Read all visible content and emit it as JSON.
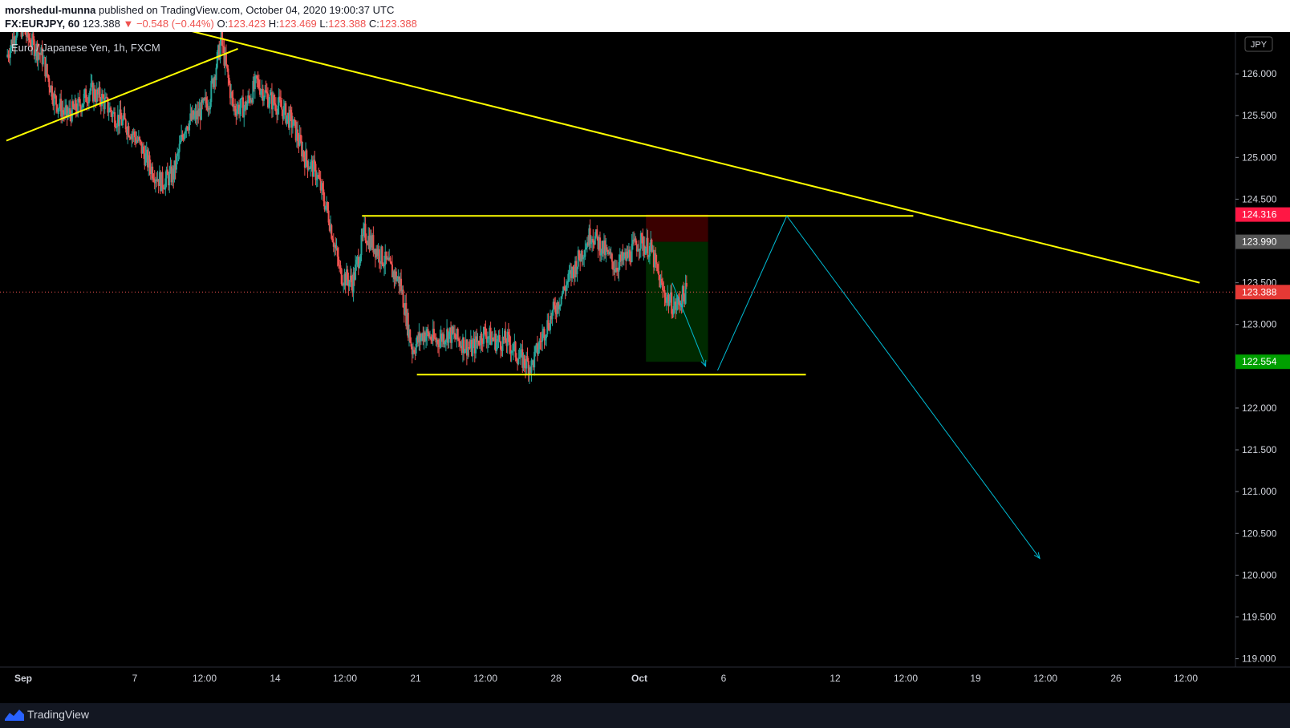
{
  "header": {
    "author": "morshedul-munna",
    "published": "published on TradingView.com, October 04, 2020 19:00:37 UTC",
    "symbol": "FX:EURJPY, 60",
    "last": "123.388",
    "change_arrow": "▼",
    "change": "−0.548 (−0.44%)",
    "o_label": "O:",
    "o_value": "123.423",
    "h_label": "H:",
    "h_value": "123.469",
    "l_label": "L:",
    "l_value": "123.388",
    "c_label": "C:",
    "c_value": "123.388"
  },
  "legend": {
    "title": "Euro / Japanese Yen, 1h, FXCM",
    "currency": "JPY"
  },
  "footer": {
    "brand": "TradingView",
    "logo_icon": "tradingview-logo-icon"
  },
  "colors": {
    "background": "#000000",
    "up_candle": "#26a69a",
    "down_candle": "#ef5350",
    "trendline": "#ffff00",
    "projection": "#00bcd4",
    "stop_zone": "#3a0000",
    "target_zone": "#002a00"
  },
  "chart_data": {
    "type": "candlestick",
    "title": "Euro / Japanese Yen, 1h, FXCM",
    "ylabel": "JPY",
    "ylim": [
      118.9,
      126.5
    ],
    "y_ticks": [
      "126.000",
      "125.500",
      "125.000",
      "124.500",
      "123.500",
      "123.000",
      "122.000",
      "121.500",
      "121.000",
      "120.500",
      "120.000",
      "119.500",
      "119.000"
    ],
    "x_ticks": [
      "Sep",
      "7",
      "12:00",
      "14",
      "12:00",
      "21",
      "12:00",
      "28",
      "Oct",
      "6",
      "12",
      "12:00",
      "19",
      "12:00",
      "26",
      "12:00"
    ],
    "price_labels": [
      {
        "label": "124.316",
        "price": 124.316,
        "color": "#ff1744"
      },
      {
        "label": "123.990",
        "price": 123.99,
        "color": "#555555"
      },
      {
        "label": "123.388",
        "price": 123.388,
        "color": "#e53935"
      },
      {
        "label": "122.554",
        "price": 122.554,
        "color": "#00a000"
      }
    ],
    "current_price": 123.388,
    "price_path": [
      [
        0.0,
        126.2
      ],
      [
        0.5,
        126.6
      ],
      [
        1.0,
        126.4
      ],
      [
        1.5,
        126.2
      ],
      [
        2.0,
        125.7
      ],
      [
        2.5,
        125.5
      ],
      [
        3.0,
        125.6
      ],
      [
        3.5,
        125.8
      ],
      [
        4.0,
        125.7
      ],
      [
        4.5,
        125.5
      ],
      [
        5.0,
        125.4
      ],
      [
        5.5,
        125.2
      ],
      [
        6.0,
        124.9
      ],
      [
        6.5,
        124.7
      ],
      [
        7.0,
        124.8
      ],
      [
        7.5,
        125.4
      ],
      [
        8.0,
        125.5
      ],
      [
        8.5,
        125.7
      ],
      [
        9.0,
        126.4
      ],
      [
        9.5,
        125.6
      ],
      [
        10.0,
        125.6
      ],
      [
        10.5,
        125.9
      ],
      [
        11.0,
        125.7
      ],
      [
        11.5,
        125.6
      ],
      [
        12.0,
        125.4
      ],
      [
        12.5,
        125.0
      ],
      [
        13.0,
        124.8
      ],
      [
        13.5,
        124.3
      ],
      [
        14.0,
        123.6
      ],
      [
        14.5,
        123.5
      ],
      [
        15.0,
        124.1
      ],
      [
        15.5,
        123.9
      ],
      [
        16.0,
        123.7
      ],
      [
        16.5,
        123.5
      ],
      [
        17.0,
        122.7
      ],
      [
        17.5,
        122.9
      ],
      [
        18.0,
        122.8
      ],
      [
        18.5,
        122.9
      ],
      [
        19.0,
        122.8
      ],
      [
        19.5,
        122.7
      ],
      [
        20.0,
        122.9
      ],
      [
        20.5,
        122.8
      ],
      [
        21.0,
        122.8
      ],
      [
        21.5,
        122.6
      ],
      [
        22.0,
        122.5
      ],
      [
        22.5,
        122.9
      ],
      [
        23.0,
        123.2
      ],
      [
        23.5,
        123.5
      ],
      [
        24.0,
        123.8
      ],
      [
        24.5,
        124.1
      ],
      [
        25.0,
        123.9
      ],
      [
        25.5,
        123.7
      ],
      [
        26.0,
        123.8
      ],
      [
        26.5,
        124.0
      ],
      [
        27.0,
        123.9
      ],
      [
        27.5,
        123.4
      ],
      [
        28.0,
        123.2
      ],
      [
        28.5,
        123.4
      ]
    ],
    "lines": [
      {
        "name": "descending-trendline",
        "color": "#ffff00",
        "points": [
          [
            6.5,
            126.6
          ],
          [
            50.0,
            123.5
          ]
        ]
      },
      {
        "name": "rising-trendline",
        "color": "#ffff00",
        "points": [
          [
            0.0,
            125.2
          ],
          [
            9.7,
            126.3
          ]
        ]
      },
      {
        "name": "range-resistance",
        "color": "#ffff00",
        "points": [
          [
            14.9,
            124.3
          ],
          [
            38.0,
            124.3
          ]
        ]
      },
      {
        "name": "range-support",
        "color": "#ffff00",
        "points": [
          [
            17.2,
            122.4
          ],
          [
            33.5,
            122.4
          ]
        ]
      },
      {
        "name": "projection-down-1",
        "color": "#00bcd4",
        "points": [
          [
            27.9,
            123.5
          ],
          [
            29.3,
            122.5
          ]
        ]
      },
      {
        "name": "projection-up",
        "color": "#00bcd4",
        "points": [
          [
            29.8,
            122.45
          ],
          [
            32.7,
            124.3
          ]
        ]
      },
      {
        "name": "projection-down-2",
        "color": "#00bcd4",
        "points": [
          [
            32.7,
            124.3
          ],
          [
            43.3,
            120.2
          ]
        ]
      }
    ],
    "position": {
      "entry": 123.99,
      "stop": 124.316,
      "target": 122.554,
      "x_range": [
        26.8,
        29.4
      ]
    }
  }
}
